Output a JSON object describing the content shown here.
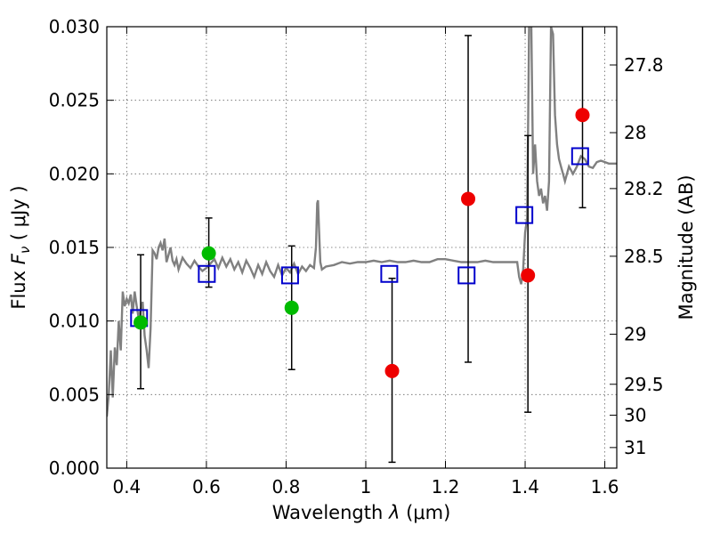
{
  "chart_data": {
    "type": "scatter",
    "title": "",
    "xlabel_text": "Wavelength",
    "xlabel_math": "λ",
    "xlabel_unit": "(μm)",
    "ylabel_text": "Flux",
    "ylabel_math": "F",
    "ylabel_sub": "ν",
    "ylabel_unit": "( μJy )",
    "y2label": "Magnitude (AB)",
    "xlim": [
      0.35,
      1.63
    ],
    "ylim": [
      0.0,
      0.03
    ],
    "xticks": [
      0.4,
      0.6,
      0.8,
      1.0,
      1.2,
      1.4,
      1.6
    ],
    "xtick_labels": [
      "0.4",
      "0.6",
      "0.8",
      "1",
      "1.2",
      "1.4",
      "1.6"
    ],
    "yticks": [
      0.0,
      0.005,
      0.01,
      0.015,
      0.02,
      0.025,
      0.03
    ],
    "ytick_labels": [
      "0.000",
      "0.005",
      "0.010",
      "0.015",
      "0.020",
      "0.025",
      "0.030"
    ],
    "y2ticks": [
      {
        "label": "27.8",
        "flux": 0.0274
      },
      {
        "label": "28",
        "flux": 0.0228
      },
      {
        "label": "28.2",
        "flux": 0.019
      },
      {
        "label": "28.5",
        "flux": 0.0144
      },
      {
        "label": "29",
        "flux": 0.0091
      },
      {
        "label": "29.5",
        "flux": 0.0057
      },
      {
        "label": "30",
        "flux": 0.0036
      },
      {
        "label": "31",
        "flux": 0.0014
      }
    ],
    "grid": true,
    "colors": {
      "spectrum": "#808080",
      "model": "#0000cc",
      "green": "#00bb00",
      "red": "#ee0000",
      "error": "#000000"
    },
    "observed": [
      {
        "x": 0.435,
        "y": 0.0099,
        "lo": 0.0054,
        "hi": 0.0145,
        "color": "green"
      },
      {
        "x": 0.606,
        "y": 0.0146,
        "lo": 0.0123,
        "hi": 0.017,
        "color": "green"
      },
      {
        "x": 0.814,
        "y": 0.0109,
        "lo": 0.0067,
        "hi": 0.0151,
        "color": "green"
      },
      {
        "x": 1.066,
        "y": 0.0066,
        "lo": 0.0004,
        "hi": 0.0129,
        "color": "red"
      },
      {
        "x": 1.257,
        "y": 0.0183,
        "lo": 0.0072,
        "hi": 0.0294,
        "color": "red"
      },
      {
        "x": 1.407,
        "y": 0.0131,
        "lo": 0.0038,
        "hi": 0.0226,
        "color": "red"
      },
      {
        "x": 1.544,
        "y": 0.024,
        "lo": 0.0177,
        "hi": 0.0305,
        "color": "red"
      }
    ],
    "model_points": [
      {
        "x": 0.431,
        "y": 0.0102
      },
      {
        "x": 0.601,
        "y": 0.0132
      },
      {
        "x": 0.81,
        "y": 0.0131
      },
      {
        "x": 1.059,
        "y": 0.0132
      },
      {
        "x": 1.253,
        "y": 0.0131
      },
      {
        "x": 1.398,
        "y": 0.0172
      },
      {
        "x": 1.538,
        "y": 0.0212
      }
    ],
    "spectrum": {
      "x": [
        0.35,
        0.355,
        0.36,
        0.365,
        0.37,
        0.375,
        0.38,
        0.385,
        0.39,
        0.395,
        0.4,
        0.405,
        0.41,
        0.415,
        0.42,
        0.425,
        0.43,
        0.435,
        0.44,
        0.445,
        0.45,
        0.455,
        0.46,
        0.465,
        0.47,
        0.475,
        0.48,
        0.485,
        0.49,
        0.495,
        0.5,
        0.505,
        0.51,
        0.515,
        0.52,
        0.525,
        0.53,
        0.54,
        0.55,
        0.56,
        0.57,
        0.58,
        0.59,
        0.6,
        0.61,
        0.62,
        0.63,
        0.64,
        0.65,
        0.66,
        0.67,
        0.68,
        0.69,
        0.7,
        0.71,
        0.72,
        0.73,
        0.74,
        0.75,
        0.76,
        0.77,
        0.78,
        0.79,
        0.8,
        0.81,
        0.82,
        0.83,
        0.84,
        0.85,
        0.86,
        0.87,
        0.875,
        0.878,
        0.88,
        0.883,
        0.886,
        0.89,
        0.9,
        0.92,
        0.94,
        0.96,
        0.98,
        1.0,
        1.02,
        1.04,
        1.06,
        1.08,
        1.1,
        1.12,
        1.14,
        1.16,
        1.18,
        1.2,
        1.22,
        1.24,
        1.26,
        1.28,
        1.3,
        1.32,
        1.34,
        1.36,
        1.38,
        1.385,
        1.39,
        1.395,
        1.4,
        1.405,
        1.41,
        1.415,
        1.42,
        1.425,
        1.43,
        1.435,
        1.44,
        1.445,
        1.45,
        1.455,
        1.46,
        1.465,
        1.47,
        1.475,
        1.48,
        1.485,
        1.49,
        1.495,
        1.5,
        1.51,
        1.52,
        1.53,
        1.54,
        1.55,
        1.56,
        1.57,
        1.58,
        1.59,
        1.6,
        1.61,
        1.62,
        1.63
      ],
      "y": [
        0.0035,
        0.005,
        0.008,
        0.0048,
        0.0082,
        0.007,
        0.01,
        0.008,
        0.012,
        0.011,
        0.0115,
        0.0112,
        0.0118,
        0.0105,
        0.012,
        0.011,
        0.0102,
        0.0108,
        0.0113,
        0.009,
        0.008,
        0.0068,
        0.0095,
        0.0148,
        0.0146,
        0.0142,
        0.015,
        0.0153,
        0.0148,
        0.0156,
        0.014,
        0.0145,
        0.015,
        0.0141,
        0.0138,
        0.0142,
        0.0135,
        0.0143,
        0.0139,
        0.0136,
        0.0141,
        0.0137,
        0.0134,
        0.0136,
        0.0139,
        0.0142,
        0.0136,
        0.0143,
        0.0137,
        0.0142,
        0.0135,
        0.014,
        0.0133,
        0.0141,
        0.0136,
        0.013,
        0.0138,
        0.0132,
        0.014,
        0.0134,
        0.013,
        0.0138,
        0.0131,
        0.0136,
        0.0133,
        0.0139,
        0.0132,
        0.0137,
        0.0134,
        0.0138,
        0.0136,
        0.015,
        0.018,
        0.0182,
        0.016,
        0.014,
        0.0135,
        0.0137,
        0.0138,
        0.014,
        0.0139,
        0.014,
        0.014,
        0.0141,
        0.014,
        0.0141,
        0.014,
        0.014,
        0.0141,
        0.014,
        0.014,
        0.0142,
        0.0142,
        0.0141,
        0.014,
        0.014,
        0.014,
        0.0141,
        0.014,
        0.014,
        0.014,
        0.014,
        0.013,
        0.0125,
        0.0135,
        0.016,
        0.017,
        0.03,
        0.031,
        0.02,
        0.022,
        0.0195,
        0.0185,
        0.019,
        0.018,
        0.0185,
        0.0175,
        0.0195,
        0.03,
        0.0295,
        0.024,
        0.022,
        0.021,
        0.0205,
        0.02,
        0.0195,
        0.0205,
        0.02,
        0.0205,
        0.0212,
        0.021,
        0.0205,
        0.0204,
        0.0208,
        0.0209,
        0.0208,
        0.0207,
        0.0207,
        0.0207
      ]
    }
  }
}
